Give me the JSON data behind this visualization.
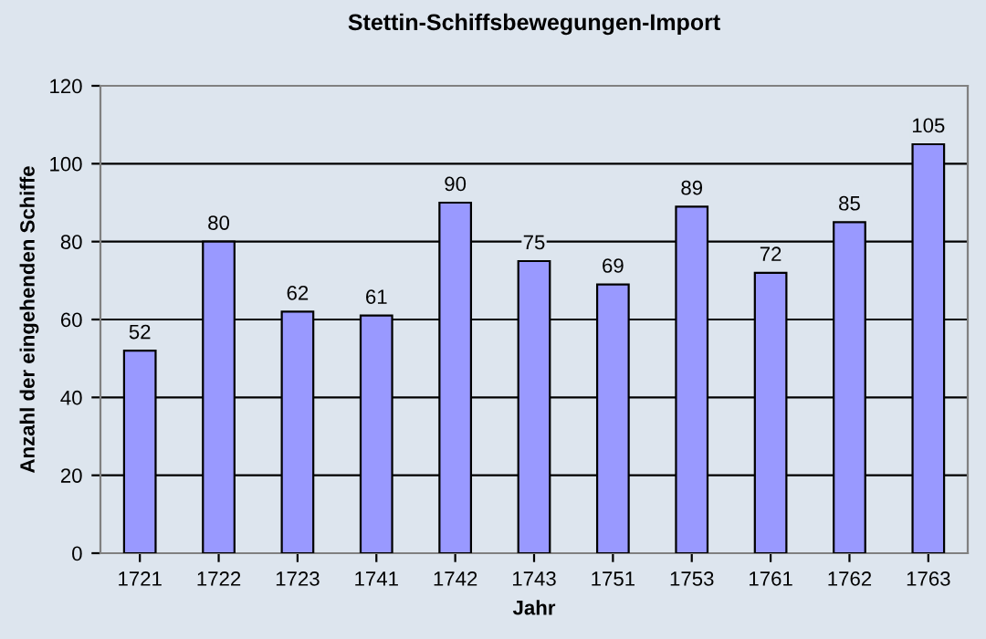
{
  "chart_data": {
    "type": "bar",
    "title": "Stettin-Schiffsbewegungen-Import",
    "xlabel": "Jahr",
    "ylabel": "Anzahl der eingehenden Schiffe",
    "categories": [
      "1721",
      "1722",
      "1723",
      "1741",
      "1742",
      "1743",
      "1751",
      "1753",
      "1761",
      "1762",
      "1763"
    ],
    "values": [
      52,
      80,
      62,
      61,
      90,
      75,
      69,
      89,
      72,
      85,
      105
    ],
    "color": "#9999ff",
    "ylim": [
      0,
      120
    ],
    "yticks": [
      0,
      20,
      40,
      60,
      80,
      100,
      120
    ],
    "grid": "y",
    "data_labels": true
  }
}
